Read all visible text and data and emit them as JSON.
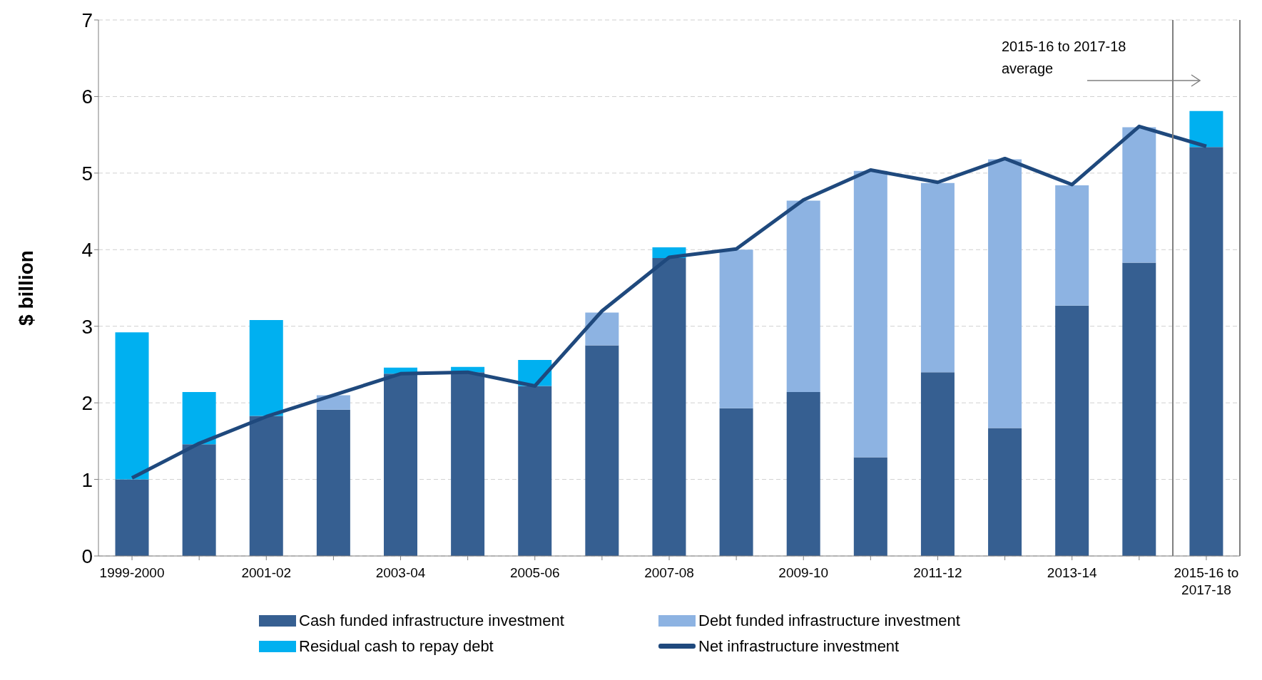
{
  "chart_data": {
    "type": "bar",
    "stacked": true,
    "ylabel": "$ billion",
    "categories": [
      "1999-2000",
      null,
      "2001-02",
      null,
      "2003-04",
      null,
      "2005-06",
      null,
      "2007-08",
      null,
      "2009-10",
      null,
      "2011-12",
      null,
      "2013-14",
      null,
      "2015-16 to 2017-18"
    ],
    "series": [
      {
        "name": "Cash funded infrastructure investment",
        "color": "#365f91",
        "values": [
          1.0,
          1.46,
          1.83,
          1.91,
          2.38,
          2.4,
          2.22,
          2.75,
          3.89,
          1.93,
          2.14,
          1.29,
          2.4,
          1.67,
          3.27,
          3.83,
          5.34
        ]
      },
      {
        "name": "Debt funded infrastructure investment",
        "color": "#8db3e2",
        "values": [
          null,
          null,
          null,
          0.19,
          null,
          null,
          null,
          0.43,
          null,
          2.07,
          2.5,
          3.74,
          2.47,
          3.51,
          1.57,
          1.77,
          null
        ]
      },
      {
        "name": "Residual cash to repay debt",
        "color": "#00b0f0",
        "values": [
          1.92,
          0.68,
          1.25,
          null,
          0.08,
          0.07,
          0.34,
          null,
          0.14,
          null,
          null,
          null,
          null,
          null,
          null,
          null,
          0.47
        ]
      },
      {
        "name": "Net infrastructure investment",
        "type": "line",
        "color": "#1f497d",
        "values": [
          1.02,
          1.47,
          1.82,
          2.1,
          2.38,
          2.4,
          2.22,
          3.2,
          3.9,
          4.01,
          4.65,
          5.04,
          4.88,
          5.19,
          4.85,
          5.61,
          5.35
        ]
      }
    ],
    "ylim": [
      0,
      7
    ],
    "yticks": [
      0,
      1,
      2,
      3,
      4,
      5,
      6,
      7
    ],
    "grid": "y",
    "legend": "bottom",
    "ref_lines": [
      {
        "axis": "x",
        "value": "2015-16 to 2017-18",
        "color": "#7f7f7f"
      }
    ],
    "annotations": [
      "2015-16 to 2017-18 average"
    ]
  }
}
